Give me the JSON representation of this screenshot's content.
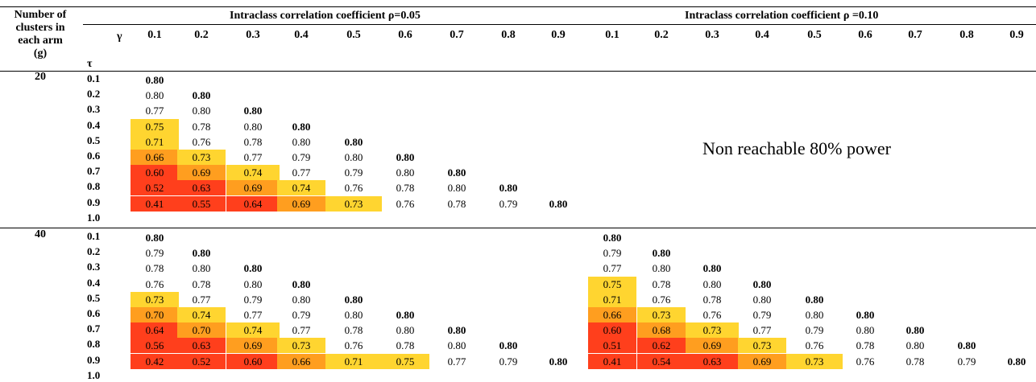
{
  "header": {
    "left_col": [
      "Number of",
      "clusters in",
      "each arm",
      "(g)"
    ],
    "gamma_symbol": "γ",
    "tau_symbol": "τ",
    "groups": [
      {
        "label": "Intraclass correlation coefficient ρ=0.05"
      },
      {
        "label": "Intraclass correlation coefficient ρ =0.10"
      }
    ],
    "gammas": [
      "0.1",
      "0.2",
      "0.3",
      "0.4",
      "0.5",
      "0.6",
      "0.7",
      "0.8",
      "0.9"
    ]
  },
  "legend": {
    "colors": {
      "high": "#ffd530",
      "mid": "#ff9e1f",
      "low": "#ff3f1c"
    }
  },
  "sections": [
    {
      "g": "20",
      "taus": [
        "0.1",
        "0.2",
        "0.3",
        "0.4",
        "0.5",
        "0.6",
        "0.7",
        "0.8",
        "0.9",
        "1.0"
      ],
      "note": "Non reachable 80% power",
      "left_rows": [
        [
          "0.80"
        ],
        [
          "0.80",
          "0.80"
        ],
        [
          "0.77",
          "0.80",
          "0.80"
        ],
        [
          "0.75",
          "0.78",
          "0.80",
          "0.80"
        ],
        [
          "0.71",
          "0.76",
          "0.78",
          "0.80",
          "0.80"
        ],
        [
          "0.66",
          "0.73",
          "0.77",
          "0.79",
          "0.80",
          "0.80"
        ],
        [
          "0.60",
          "0.69",
          "0.74",
          "0.77",
          "0.79",
          "0.80",
          "0.80"
        ],
        [
          "0.52",
          "0.63",
          "0.69",
          "0.74",
          "0.76",
          "0.78",
          "0.80",
          "0.80"
        ],
        [
          "0.41",
          "0.55",
          "0.64",
          "0.69",
          "0.73",
          "0.76",
          "0.78",
          "0.79",
          "0.80"
        ]
      ],
      "right_rows": []
    },
    {
      "g": "40",
      "taus": [
        "0.1",
        "0.2",
        "0.3",
        "0.4",
        "0.5",
        "0.6",
        "0.7",
        "0.8",
        "0.9",
        "1.0"
      ],
      "note": "",
      "left_rows": [
        [
          "0.80"
        ],
        [
          "0.79",
          "0.80"
        ],
        [
          "0.78",
          "0.80",
          "0.80"
        ],
        [
          "0.76",
          "0.78",
          "0.80",
          "0.80"
        ],
        [
          "0.73",
          "0.77",
          "0.79",
          "0.80",
          "0.80"
        ],
        [
          "0.70",
          "0.74",
          "0.77",
          "0.79",
          "0.80",
          "0.80"
        ],
        [
          "0.64",
          "0.70",
          "0.74",
          "0.77",
          "0.78",
          "0.80",
          "0.80"
        ],
        [
          "0.56",
          "0.63",
          "0.69",
          "0.73",
          "0.76",
          "0.78",
          "0.80",
          "0.80"
        ],
        [
          "0.42",
          "0.52",
          "0.60",
          "0.66",
          "0.71",
          "0.75",
          "0.77",
          "0.79",
          "0.80"
        ]
      ],
      "right_rows": [
        [
          "0.80"
        ],
        [
          "0.79",
          "0.80"
        ],
        [
          "0.77",
          "0.80",
          "0.80"
        ],
        [
          "0.75",
          "0.78",
          "0.80",
          "0.80"
        ],
        [
          "0.71",
          "0.76",
          "0.78",
          "0.80",
          "0.80"
        ],
        [
          "0.66",
          "0.73",
          "0.76",
          "0.79",
          "0.80",
          "0.80"
        ],
        [
          "0.60",
          "0.68",
          "0.73",
          "0.77",
          "0.79",
          "0.80",
          "0.80"
        ],
        [
          "0.51",
          "0.62",
          "0.69",
          "0.73",
          "0.76",
          "0.78",
          "0.80",
          "0.80"
        ],
        [
          "0.41",
          "0.54",
          "0.63",
          "0.69",
          "0.73",
          "0.76",
          "0.78",
          "0.79",
          "0.80"
        ]
      ]
    }
  ]
}
